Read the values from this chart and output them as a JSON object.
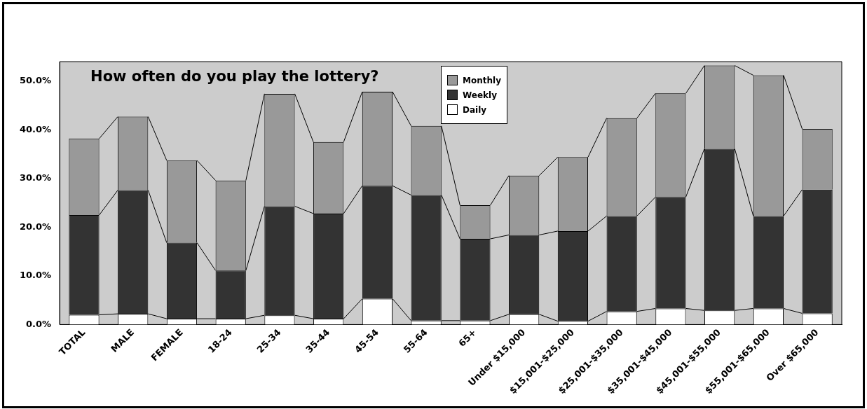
{
  "chart_data": {
    "type": "bar",
    "title": "How often do you play the lottery?",
    "stacked": true,
    "legend": "top",
    "grid": false,
    "categories": [
      "TOTAL",
      "MALE",
      "FEMALE",
      "18-24",
      "25-34",
      "35-44",
      "45-54",
      "55-64",
      "65+",
      "Under $15,000",
      "$15,001-$25,000",
      "$25,001-$35,000",
      "$35,001-$45,000",
      "$45,001-$55,000",
      "$55,001-$65,000",
      "Over $65,000"
    ],
    "series": [
      {
        "name": "Daily",
        "color": "#ffffff",
        "values": [
          2.0,
          2.2,
          1.2,
          1.2,
          1.9,
          1.2,
          5.3,
          0.8,
          0.8,
          2.1,
          0.7,
          2.7,
          3.3,
          2.9,
          3.3,
          2.3
        ]
      },
      {
        "name": "Weekly",
        "color": "#333333",
        "values": [
          20.5,
          25.4,
          15.6,
          9.9,
          22.4,
          21.6,
          23.2,
          25.8,
          16.8,
          16.3,
          18.5,
          19.6,
          22.9,
          33.2,
          19.0,
          25.4
        ]
      },
      {
        "name": "Monthly",
        "color": "#999999",
        "values": [
          15.7,
          15.1,
          16.9,
          18.5,
          23.1,
          14.7,
          19.3,
          14.2,
          6.9,
          12.2,
          15.2,
          20.1,
          21.3,
          17.1,
          28.9,
          12.5
        ]
      }
    ],
    "ylim": [
      0,
      54
    ],
    "yticks": [
      {
        "value": 0,
        "label": "0.0%"
      },
      {
        "value": 10,
        "label": "10.0%"
      },
      {
        "value": 20,
        "label": "20.0%"
      },
      {
        "value": 30,
        "label": "30.0%"
      },
      {
        "value": 40,
        "label": "40.0%"
      },
      {
        "value": 50,
        "label": "50.0%"
      }
    ]
  }
}
